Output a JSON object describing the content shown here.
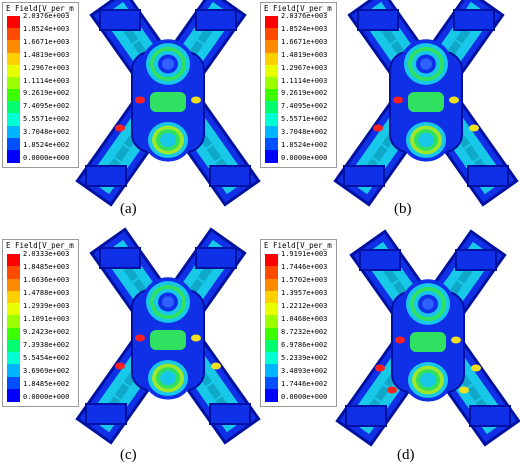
{
  "figure": {
    "legend_title": "E Field[V_per_m",
    "panels": [
      {
        "caption": "(a)",
        "ticks": [
          "2.0376e+003",
          "1.8524e+003",
          "1.6671e+003",
          "1.4819e+003",
          "1.2967e+003",
          "1.1114e+003",
          "9.2619e+002",
          "7.4095e+002",
          "5.5571e+002",
          "3.7048e+002",
          "1.8524e+002",
          "0.0000e+000"
        ],
        "hotspot_level": 0.35
      },
      {
        "caption": "(b)",
        "ticks": [
          "2.0376e+003",
          "1.8524e+003",
          "1.6671e+003",
          "1.4819e+003",
          "1.2967e+003",
          "1.1114e+003",
          "9.2619e+002",
          "7.4095e+002",
          "5.5571e+002",
          "3.7048e+002",
          "1.8524e+002",
          "0.0000e+000"
        ],
        "hotspot_level": 0.45
      },
      {
        "caption": "(c)",
        "ticks": [
          "2.0333e+003",
          "1.8485e+003",
          "1.6636e+003",
          "1.4788e+003",
          "1.2939e+003",
          "1.1091e+003",
          "9.2423e+002",
          "7.3938e+002",
          "5.5454e+002",
          "3.6969e+002",
          "1.8485e+002",
          "0.0000e+000"
        ],
        "hotspot_level": 0.55
      },
      {
        "caption": "(d)",
        "ticks": [
          "1.9191e+003",
          "1.7446e+003",
          "1.5702e+003",
          "1.3957e+003",
          "1.2212e+003",
          "1.0468e+003",
          "8.7232e+002",
          "6.9786e+002",
          "5.2339e+002",
          "3.4893e+002",
          "1.7446e+002",
          "0.0000e+000"
        ],
        "hotspot_level": 0.7
      }
    ],
    "colormap": [
      "#ff0000",
      "#ff4a00",
      "#ff8c00",
      "#ffd000",
      "#e8ff00",
      "#9cff00",
      "#3cff00",
      "#00ff6e",
      "#00ffd2",
      "#00b4ff",
      "#0050ff",
      "#0000ff"
    ]
  }
}
